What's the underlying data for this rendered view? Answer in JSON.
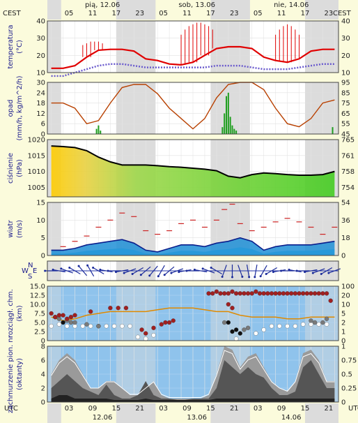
{
  "header": {
    "left_label": "CEST",
    "right_label": "CEST",
    "hours": [
      "05",
      "11",
      "17",
      "23",
      "05",
      "11",
      "17",
      "23",
      "05",
      "11",
      "17",
      "23"
    ],
    "days": [
      "pią, 12.06",
      "sob, 13.06",
      "nie, 14.06"
    ]
  },
  "footer": {
    "left_label": "UTC",
    "right_label": "UTC",
    "hours": [
      "03",
      "09",
      "15",
      "21",
      "03",
      "09",
      "15",
      "21",
      "03",
      "09",
      "15",
      "21"
    ],
    "days": [
      "12.06",
      "13.06",
      "14.06"
    ]
  },
  "colors": {
    "background": "#fbfbdc",
    "panel": "#ffffff",
    "night_stripe": "#dcdcdc",
    "temperature": "#e00000",
    "dewpoint": "#6a5acd",
    "humidity": "#b84000",
    "precip": "#1f9e1f",
    "pressure_fill": "#66cc33",
    "wind_gust": "#cc2222",
    "wind_fill": "#1e8fd6",
    "visibility_bg": "#8fc3ec",
    "cloud_bg": "#8fc3ec",
    "axis_label": "#1a1a8c",
    "right_axis": "#c06000"
  },
  "chart_data": [
    {
      "id": "temperature",
      "type": "line",
      "ylabel": "temperatura",
      "yunit": "(°C)",
      "ylim": [
        10,
        40
      ],
      "yticks": [
        10,
        20,
        30,
        40
      ],
      "right_ticks": [
        10,
        20,
        30,
        40
      ],
      "x_hours": [
        0,
        3,
        6,
        9,
        12,
        15,
        18,
        21,
        24,
        27,
        30,
        33,
        36,
        39,
        42,
        45,
        48,
        51,
        54,
        57,
        60,
        63,
        66,
        69,
        72
      ],
      "series": [
        {
          "values": [
            12.5,
            12.5,
            14,
            19,
            23,
            23.5,
            23.5,
            22.5,
            18,
            17,
            15,
            14.5,
            16,
            20,
            24,
            25,
            25,
            24,
            19,
            17,
            16,
            18,
            22.5,
            23.5,
            23.5
          ]
        },
        {
          "values": [
            8,
            8,
            10,
            12,
            14,
            15,
            15,
            14,
            13,
            13,
            13,
            13,
            13,
            13,
            14,
            14,
            14,
            13,
            12,
            12,
            12,
            13,
            14,
            15,
            15
          ]
        }
      ],
      "max_ticks": [
        {
          "x": 8,
          "v": 26
        },
        {
          "x": 9,
          "v": 27
        },
        {
          "x": 10,
          "v": 28
        },
        {
          "x": 11,
          "v": 28
        },
        {
          "x": 12,
          "v": 28
        },
        {
          "x": 13,
          "v": 27
        },
        {
          "x": 33,
          "v": 32
        },
        {
          "x": 34,
          "v": 35
        },
        {
          "x": 35,
          "v": 37
        },
        {
          "x": 36,
          "v": 38
        },
        {
          "x": 37,
          "v": 39
        },
        {
          "x": 38,
          "v": 39
        },
        {
          "x": 39,
          "v": 38
        },
        {
          "x": 40,
          "v": 37
        },
        {
          "x": 41,
          "v": 35
        },
        {
          "x": 57,
          "v": 32
        },
        {
          "x": 58,
          "v": 35
        },
        {
          "x": 59,
          "v": 37
        },
        {
          "x": 60,
          "v": 38
        },
        {
          "x": 61,
          "v": 37
        },
        {
          "x": 62,
          "v": 35
        },
        {
          "x": 63,
          "v": 32
        }
      ]
    },
    {
      "id": "precipitation",
      "type": "bar",
      "ylabel": "opad",
      "yunit": "(mm/h, kg/m^2/h)",
      "ylim": [
        0,
        30
      ],
      "yticks": [
        0,
        6,
        12,
        18,
        24,
        30
      ],
      "right_ticks": [
        45,
        55,
        65,
        75,
        85,
        95
      ],
      "right_range": [
        45,
        95
      ],
      "x_hours": [
        0,
        3,
        6,
        9,
        12,
        15,
        18,
        21,
        24,
        27,
        30,
        33,
        36,
        39,
        42,
        45,
        48,
        51,
        54,
        57,
        60,
        63,
        66,
        69,
        72
      ],
      "humidity": [
        75,
        75,
        70,
        55,
        58,
        75,
        90,
        93,
        93,
        84,
        70,
        60,
        50,
        60,
        80,
        93,
        95,
        95,
        88,
        70,
        55,
        52,
        60,
        75,
        78
      ],
      "bars": [
        {
          "x": 11.5,
          "v": 3
        },
        {
          "x": 12,
          "v": 5
        },
        {
          "x": 12.5,
          "v": 2
        },
        {
          "x": 43.5,
          "v": 4
        },
        {
          "x": 44,
          "v": 12
        },
        {
          "x": 44.5,
          "v": 22
        },
        {
          "x": 45,
          "v": 24
        },
        {
          "x": 45.5,
          "v": 10
        },
        {
          "x": 46,
          "v": 5
        },
        {
          "x": 46.5,
          "v": 3
        },
        {
          "x": 47,
          "v": 2
        },
        {
          "x": 71.5,
          "v": 4
        }
      ]
    },
    {
      "id": "pressure",
      "type": "area",
      "ylabel": "ciśnienie",
      "yunit": "(hPa)",
      "ylim": [
        1002,
        1020
      ],
      "yticks": [
        1005,
        1010,
        1015,
        1020
      ],
      "right_ticks": [
        754,
        758,
        761,
        765
      ],
      "x_hours": [
        0,
        3,
        6,
        9,
        12,
        15,
        18,
        21,
        24,
        27,
        30,
        33,
        36,
        39,
        42,
        45,
        48,
        51,
        54,
        57,
        60,
        63,
        66,
        69,
        72
      ],
      "values": [
        1018,
        1017.8,
        1017.5,
        1016.5,
        1014.5,
        1013,
        1012,
        1012,
        1012,
        1011.8,
        1011.5,
        1011.3,
        1011,
        1010.7,
        1010.2,
        1008.5,
        1008,
        1009,
        1009.5,
        1009.3,
        1009,
        1008.8,
        1008.8,
        1009,
        1010
      ]
    },
    {
      "id": "wind",
      "type": "area",
      "ylabel": "wiatr",
      "yunit": "(m/s)",
      "ylim": [
        0,
        15
      ],
      "yticks": [
        0,
        5,
        10,
        15
      ],
      "right_ticks": [
        0,
        18,
        36,
        54
      ],
      "x_hours": [
        0,
        3,
        6,
        9,
        12,
        15,
        18,
        21,
        24,
        27,
        30,
        33,
        36,
        39,
        42,
        45,
        48,
        51,
        54,
        57,
        60,
        63,
        66,
        69,
        72
      ],
      "values": [
        1.5,
        1.5,
        2,
        3,
        3.5,
        4,
        4.5,
        3.5,
        1.5,
        1,
        2,
        3,
        3,
        2.5,
        3.5,
        4,
        5,
        4,
        1.5,
        2.5,
        3,
        3,
        3,
        3.5,
        4
      ],
      "gusts": [
        {
          "x": 3,
          "v": 2.5
        },
        {
          "x": 6,
          "v": 4
        },
        {
          "x": 9,
          "v": 5.5
        },
        {
          "x": 12,
          "v": 8
        },
        {
          "x": 15,
          "v": 10
        },
        {
          "x": 18,
          "v": 12
        },
        {
          "x": 21,
          "v": 11
        },
        {
          "x": 24,
          "v": 7
        },
        {
          "x": 27,
          "v": 6
        },
        {
          "x": 30,
          "v": 7
        },
        {
          "x": 33,
          "v": 9
        },
        {
          "x": 36,
          "v": 10
        },
        {
          "x": 39,
          "v": 8
        },
        {
          "x": 42,
          "v": 10
        },
        {
          "x": 44,
          "v": 13
        },
        {
          "x": 46,
          "v": 14.5
        },
        {
          "x": 48,
          "v": 9
        },
        {
          "x": 51,
          "v": 7
        },
        {
          "x": 54,
          "v": 8
        },
        {
          "x": 57,
          "v": 9.5
        },
        {
          "x": 60,
          "v": 10.5
        },
        {
          "x": 63,
          "v": 9.5
        },
        {
          "x": 66,
          "v": 8
        },
        {
          "x": 69,
          "v": 6
        },
        {
          "x": 72,
          "v": 8
        }
      ]
    },
    {
      "id": "wind_direction",
      "type": "scatter",
      "ylabel": "",
      "compass": [
        "N",
        "W",
        "E",
        "S"
      ],
      "x_hours": [
        0,
        2,
        4,
        6,
        8,
        10,
        12,
        14,
        16,
        18,
        20,
        22,
        24,
        26,
        28,
        30,
        32,
        34,
        36,
        38,
        40,
        42,
        44,
        46,
        48,
        50,
        52,
        54,
        56,
        58,
        60,
        62,
        64,
        66,
        68,
        70,
        72
      ],
      "angles": [
        270,
        280,
        290,
        300,
        320,
        330,
        300,
        280,
        270,
        260,
        250,
        240,
        230,
        220,
        210,
        230,
        250,
        260,
        270,
        280,
        290,
        300,
        200,
        180,
        160,
        170,
        190,
        210,
        240,
        260,
        270,
        280,
        270,
        260,
        250,
        240,
        250
      ]
    },
    {
      "id": "visibility",
      "type": "scatter",
      "ylabel": "rozciągł. chm.",
      "yunit": "(km)",
      "ylim": [
        0,
        15
      ],
      "yticks": [
        0,
        2.5,
        5.0,
        7.5,
        10.0,
        12.5,
        15.0
      ],
      "ytick_labels": [
        "0",
        "2.5",
        "5.0",
        "7.5",
        "10.0",
        "12.5",
        "15.0"
      ],
      "right_ticks": [
        0,
        1,
        2,
        5,
        10,
        20,
        100
      ],
      "x_hours": [
        0,
        3,
        6,
        9,
        12,
        15,
        18,
        21,
        24,
        27,
        30,
        33,
        36,
        39,
        42,
        45,
        48,
        51,
        54,
        57,
        60,
        63,
        66,
        69,
        72
      ],
      "line": [
        6.5,
        5.5,
        6,
        7,
        7.5,
        8,
        8,
        8,
        8,
        8.5,
        9,
        9,
        9,
        8.5,
        8,
        8,
        7,
        6.5,
        6.5,
        6.5,
        6,
        6,
        6.5,
        6.5,
        6.5
      ],
      "dots_red": [
        {
          "x": 0,
          "v": 7.5
        },
        {
          "x": 1,
          "v": 6.5
        },
        {
          "x": 2,
          "v": 7
        },
        {
          "x": 3,
          "v": 7
        },
        {
          "x": 4,
          "v": 6
        },
        {
          "x": 5,
          "v": 6.5
        },
        {
          "x": 6,
          "v": 7
        },
        {
          "x": 10,
          "v": 8
        },
        {
          "x": 15,
          "v": 9
        },
        {
          "x": 17,
          "v": 9
        },
        {
          "x": 19,
          "v": 9
        },
        {
          "x": 40,
          "v": 13
        },
        {
          "x": 41,
          "v": 13
        },
        {
          "x": 42,
          "v": 13.5
        },
        {
          "x": 43,
          "v": 13
        },
        {
          "x": 44,
          "v": 13
        },
        {
          "x": 45,
          "v": 13
        },
        {
          "x": 46,
          "v": 13.5
        },
        {
          "x": 47,
          "v": 13
        },
        {
          "x": 48,
          "v": 13
        },
        {
          "x": 49,
          "v": 13
        },
        {
          "x": 50,
          "v": 13
        },
        {
          "x": 51,
          "v": 13
        },
        {
          "x": 52,
          "v": 13.5
        },
        {
          "x": 53,
          "v": 13
        },
        {
          "x": 54,
          "v": 13
        },
        {
          "x": 55,
          "v": 13
        },
        {
          "x": 56,
          "v": 13
        },
        {
          "x": 57,
          "v": 13
        },
        {
          "x": 58,
          "v": 13
        },
        {
          "x": 59,
          "v": 13
        },
        {
          "x": 60,
          "v": 13
        },
        {
          "x": 61,
          "v": 13
        },
        {
          "x": 62,
          "v": 13
        },
        {
          "x": 63,
          "v": 13
        },
        {
          "x": 64,
          "v": 13
        },
        {
          "x": 65,
          "v": 13
        },
        {
          "x": 66,
          "v": 13
        },
        {
          "x": 67,
          "v": 13
        },
        {
          "x": 68,
          "v": 13
        },
        {
          "x": 69,
          "v": 13
        },
        {
          "x": 70,
          "v": 13
        },
        {
          "x": 71,
          "v": 11
        },
        {
          "x": 23,
          "v": 3
        },
        {
          "x": 24,
          "v": 2
        },
        {
          "x": 26,
          "v": 3.5
        },
        {
          "x": 28,
          "v": 4.5
        },
        {
          "x": 29,
          "v": 5
        },
        {
          "x": 30,
          "v": 5
        },
        {
          "x": 31,
          "v": 5.5
        },
        {
          "x": 45,
          "v": 10
        },
        {
          "x": 46,
          "v": 9
        }
      ],
      "dots_black": [
        {
          "x": 1,
          "v": 6.5
        },
        {
          "x": 3,
          "v": 5
        },
        {
          "x": 45,
          "v": 5
        },
        {
          "x": 46,
          "v": 2.5
        },
        {
          "x": 47,
          "v": 3
        },
        {
          "x": 48,
          "v": 2
        }
      ],
      "dots_gray": [
        {
          "x": 2,
          "v": 6
        },
        {
          "x": 4,
          "v": 5.5
        },
        {
          "x": 5,
          "v": 5
        },
        {
          "x": 6,
          "v": 5
        },
        {
          "x": 9,
          "v": 4.5
        },
        {
          "x": 12,
          "v": 4
        },
        {
          "x": 44,
          "v": 5
        },
        {
          "x": 49,
          "v": 3
        },
        {
          "x": 50,
          "v": 3.5
        },
        {
          "x": 66,
          "v": 5.5
        },
        {
          "x": 67,
          "v": 5
        },
        {
          "x": 69,
          "v": 5
        },
        {
          "x": 70,
          "v": 6
        }
      ],
      "dots_white": [
        {
          "x": 0,
          "v": 4
        },
        {
          "x": 2,
          "v": 4.5
        },
        {
          "x": 4,
          "v": 4
        },
        {
          "x": 6,
          "v": 4
        },
        {
          "x": 8,
          "v": 4
        },
        {
          "x": 10,
          "v": 4
        },
        {
          "x": 12,
          "v": 4
        },
        {
          "x": 14,
          "v": 4
        },
        {
          "x": 16,
          "v": 4
        },
        {
          "x": 18,
          "v": 4
        },
        {
          "x": 20,
          "v": 4
        },
        {
          "x": 22,
          "v": 1
        },
        {
          "x": 24,
          "v": 0.5
        },
        {
          "x": 26,
          "v": 1.5
        },
        {
          "x": 47,
          "v": 0.5
        },
        {
          "x": 52,
          "v": 2
        },
        {
          "x": 54,
          "v": 3
        },
        {
          "x": 56,
          "v": 4
        },
        {
          "x": 58,
          "v": 4
        },
        {
          "x": 60,
          "v": 4
        },
        {
          "x": 62,
          "v": 4
        },
        {
          "x": 64,
          "v": 4.5
        },
        {
          "x": 66,
          "v": 4.5
        },
        {
          "x": 68,
          "v": 4.5
        },
        {
          "x": 70,
          "v": 4.5
        }
      ]
    },
    {
      "id": "cloud",
      "type": "area",
      "ylabel": "zachmurzenie pion. nr",
      "yunit": "(oktanty)",
      "ylim": [
        0,
        8
      ],
      "yticks": [
        0,
        2,
        4,
        6,
        8
      ],
      "right_ticks": [
        0,
        0.25,
        0.5,
        0.75,
        1
      ],
      "right_tick_labels": [
        "0",
        "0.25",
        "0.5",
        "0.75",
        "1"
      ],
      "x_hours": [
        0,
        2,
        4,
        6,
        8,
        10,
        12,
        14,
        16,
        18,
        20,
        22,
        24,
        26,
        28,
        30,
        32,
        34,
        36,
        38,
        40,
        42,
        44,
        46,
        48,
        50,
        52,
        54,
        56,
        58,
        60,
        62,
        64,
        66,
        68,
        70,
        72
      ],
      "high": [
        4,
        6,
        7,
        6,
        4,
        2,
        2,
        3,
        3,
        2,
        1,
        1,
        2,
        3,
        1,
        0.5,
        0.5,
        0.5,
        0.5,
        0.5,
        1,
        4,
        8,
        7.5,
        5,
        6.5,
        7,
        5,
        3,
        2,
        1.5,
        3,
        7,
        7.5,
        6,
        3,
        3
      ],
      "mid": [
        2,
        3,
        4,
        3,
        2,
        1.5,
        1,
        2.5,
        1,
        0.5,
        0.5,
        1,
        3,
        1,
        0.5,
        0.5,
        0.3,
        0.3,
        0.5,
        0.5,
        0.5,
        2,
        6,
        5,
        4,
        5,
        4,
        3.5,
        2,
        1,
        1,
        1.5,
        5,
        6,
        4,
        2,
        2
      ],
      "low": [
        0.5,
        1,
        1,
        0.5,
        0.5,
        0.5,
        0.5,
        0.5,
        0.3,
        0.3,
        0.3,
        0.3,
        0.5,
        0.3,
        0.3,
        0.3,
        0.3,
        0.3,
        0.3,
        0.3,
        0.3,
        0.5,
        0.5,
        0.5,
        0.5,
        0.5,
        0.5,
        0.5,
        0.5,
        0.5,
        0.5,
        0.5,
        0.5,
        0.5,
        0.5,
        0.5,
        0.5
      ]
    }
  ]
}
